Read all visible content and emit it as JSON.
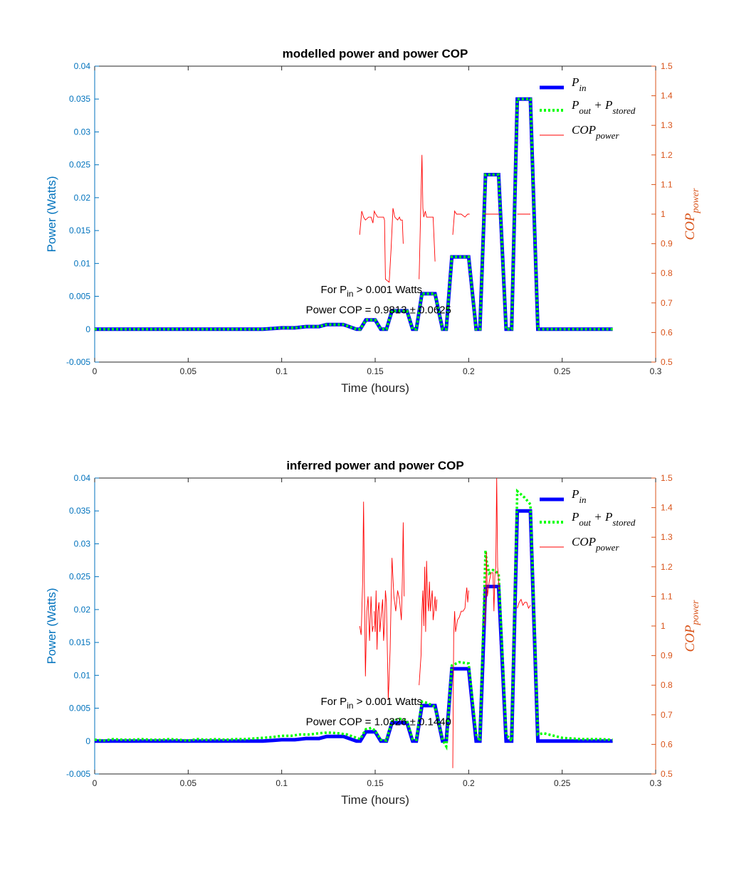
{
  "chart_data": [
    {
      "type": "line",
      "title": "modelled power and power COP",
      "xlabel": "Time (hours)",
      "ylabel_left": "Power (Watts)",
      "ylabel_right_main": "COP",
      "ylabel_right_sub": "power",
      "xlim": [
        0,
        0.3
      ],
      "ylim_left": [
        -0.005,
        0.04
      ],
      "ylim_right": [
        0.5,
        1.5
      ],
      "xticks": [
        "0",
        "0.05",
        "0.1",
        "0.15",
        "0.2",
        "0.25",
        "0.3"
      ],
      "yticks_left": [
        "-0.005",
        "0",
        "0.005",
        "0.01",
        "0.015",
        "0.02",
        "0.025",
        "0.03",
        "0.035",
        "0.04"
      ],
      "yticks_right": [
        "0.5",
        "0.6",
        "0.7",
        "0.8",
        "0.9",
        "1",
        "1.1",
        "1.2",
        "1.3",
        "1.4",
        "1.5"
      ],
      "grid": false,
      "legend_position": "top-right",
      "legend": [
        {
          "main": "P",
          "sub": "in"
        },
        {
          "main": "P",
          "sub": "out",
          "main2": " + P",
          "sub2": "stored"
        },
        {
          "main": "COP",
          "sub": "power"
        }
      ],
      "annotation": {
        "line1_pre": "For P",
        "line1_sub": "in",
        "line1_post": " > 0.001 Watts",
        "line2": "Power COP = 0.9813 ± 0.0625"
      },
      "colors": {
        "p_in": "#0000ff",
        "p_out": "#00ff00",
        "cop": "#ff0000",
        "left_axis": "#0072bd",
        "right_axis": "#d95319"
      },
      "series": [
        {
          "name": "P_in",
          "axis": "left",
          "x": [
            0,
            0.09,
            0.1,
            0.107,
            0.113,
            0.12,
            0.124,
            0.133,
            0.14,
            0.142,
            0.145,
            0.15,
            0.153,
            0.156,
            0.159,
            0.167,
            0.17,
            0.172,
            0.175,
            0.182,
            0.186,
            0.188,
            0.191,
            0.2,
            0.204,
            0.206,
            0.209,
            0.216,
            0.22,
            0.223,
            0.226,
            0.233,
            0.237,
            0.277
          ],
          "y": [
            0,
            0,
            0.0002,
            0.0002,
            0.0004,
            0.0004,
            0.0007,
            0.0007,
            0,
            0,
            0.0014,
            0.0014,
            0,
            0,
            0.0028,
            0.0028,
            0,
            0,
            0.0054,
            0.0054,
            0,
            0,
            0.011,
            0.011,
            0,
            0,
            0.0235,
            0.0235,
            0,
            0,
            0.035,
            0.035,
            0,
            0
          ]
        },
        {
          "name": "P_out + P_stored",
          "axis": "left",
          "x": [
            0,
            0.09,
            0.1,
            0.107,
            0.113,
            0.12,
            0.124,
            0.133,
            0.14,
            0.142,
            0.145,
            0.15,
            0.153,
            0.156,
            0.159,
            0.167,
            0.17,
            0.172,
            0.175,
            0.182,
            0.186,
            0.188,
            0.191,
            0.2,
            0.204,
            0.206,
            0.209,
            0.216,
            0.22,
            0.223,
            0.226,
            0.233,
            0.237,
            0.277
          ],
          "y": [
            0,
            0,
            0.0002,
            0.0002,
            0.0004,
            0.0004,
            0.0007,
            0.0007,
            0,
            0,
            0.0014,
            0.0014,
            0,
            0,
            0.0028,
            0.0028,
            0,
            0,
            0.0054,
            0.0054,
            0,
            0,
            0.011,
            0.011,
            0,
            0,
            0.0235,
            0.0235,
            0,
            0,
            0.035,
            0.035,
            0,
            0
          ]
        },
        {
          "name": "COP_power",
          "axis": "right",
          "segments": [
            {
              "x": [
                0.1417,
                0.1428,
                0.1438,
                0.1448,
                0.1465,
                0.1478,
                0.1488
              ],
              "y": [
                0.93,
                1.01,
                0.99,
                0.98,
                0.99,
                0.99,
                0.97
              ]
            },
            {
              "x": [
                0.1488,
                0.1492,
                0.1495,
                0.1503,
                0.1513,
                0.1525,
                0.1535,
                0.1545,
                0.155,
                0.1555,
                0.1575,
                0.1585,
                0.1595,
                0.1605,
                0.162,
                0.163,
                0.1635,
                0.1645,
                0.165
              ],
              "y": [
                0.97,
                0.99,
                1.01,
                1.0,
                0.99,
                0.99,
                0.99,
                0.99,
                0.98,
                0.78,
                0.77,
                0.88,
                1.02,
                0.99,
                0.98,
                0.99,
                0.98,
                0.98,
                0.9
              ]
            },
            {
              "x": [
                0.1735,
                0.175,
                0.1755,
                0.176,
                0.1768,
                0.1775,
                0.179,
                0.18,
                0.181,
                0.182
              ],
              "y": [
                0.78,
                1.2,
                1.02,
                0.99,
                1.01,
                0.99,
                0.99,
                0.99,
                0.99,
                0.84
              ]
            },
            {
              "x": [
                0.1915,
                0.1925,
                0.1935,
                0.196,
                0.198,
                0.1995,
                0.2005
              ],
              "y": [
                0.93,
                1.01,
                1.0,
                1.0,
                0.99,
                1.0,
                1.0
              ]
            },
            {
              "x": [
                0.2085,
                0.2095,
                0.2115,
                0.2135,
                0.2155,
                0.216
              ],
              "y": [
                1.0,
                1.0,
                1.0,
                1.0,
                1.0,
                1.0
              ]
            },
            {
              "x": [
                0.226,
                0.227,
                0.229,
                0.231,
                0.2325,
                0.233
              ],
              "y": [
                1.0,
                1.0,
                1.0,
                1.0,
                1.0,
                1.0
              ]
            }
          ]
        }
      ]
    },
    {
      "type": "line",
      "title": "inferred power and power COP",
      "xlabel": "Time (hours)",
      "ylabel_left": "Power (Watts)",
      "ylabel_right_main": "COP",
      "ylabel_right_sub": "power",
      "xlim": [
        0,
        0.3
      ],
      "ylim_left": [
        -0.005,
        0.04
      ],
      "ylim_right": [
        0.5,
        1.5
      ],
      "xticks": [
        "0",
        "0.05",
        "0.1",
        "0.15",
        "0.2",
        "0.25",
        "0.3"
      ],
      "yticks_left": [
        "-0.005",
        "0",
        "0.005",
        "0.01",
        "0.015",
        "0.02",
        "0.025",
        "0.03",
        "0.035",
        "0.04"
      ],
      "yticks_right": [
        "0.5",
        "0.6",
        "0.7",
        "0.8",
        "0.9",
        "1",
        "1.1",
        "1.2",
        "1.3",
        "1.4",
        "1.5"
      ],
      "grid": false,
      "legend_position": "top-right",
      "legend": [
        {
          "main": "P",
          "sub": "in"
        },
        {
          "main": "P",
          "sub": "out",
          "main2": " + P",
          "sub2": "stored"
        },
        {
          "main": "COP",
          "sub": "power"
        }
      ],
      "annotation": {
        "line1_pre": "For P",
        "line1_sub": "in",
        "line1_post": " > 0.001 Watts",
        "line2": "Power COP = 1.0326 ± 0.1440"
      },
      "colors": {
        "p_in": "#0000ff",
        "p_out": "#00ff00",
        "cop": "#ff0000",
        "left_axis": "#0072bd",
        "right_axis": "#d95319"
      },
      "series": [
        {
          "name": "P_in",
          "axis": "left",
          "x": [
            0,
            0.09,
            0.1,
            0.107,
            0.113,
            0.12,
            0.124,
            0.133,
            0.14,
            0.142,
            0.145,
            0.15,
            0.153,
            0.156,
            0.159,
            0.167,
            0.17,
            0.172,
            0.175,
            0.182,
            0.186,
            0.188,
            0.191,
            0.2,
            0.204,
            0.206,
            0.209,
            0.216,
            0.22,
            0.223,
            0.226,
            0.233,
            0.237,
            0.277
          ],
          "y": [
            0,
            0,
            0.0002,
            0.0002,
            0.0004,
            0.0004,
            0.0007,
            0.0007,
            0,
            0,
            0.0014,
            0.0014,
            0,
            0,
            0.0028,
            0.0028,
            0,
            0,
            0.0054,
            0.0054,
            0,
            0,
            0.011,
            0.011,
            0,
            0,
            0.0235,
            0.0235,
            0,
            0,
            0.035,
            0.035,
            0,
            0
          ]
        },
        {
          "name": "P_out + P_stored",
          "axis": "left",
          "x": [
            0,
            0.005,
            0.01,
            0.015,
            0.02,
            0.025,
            0.03,
            0.035,
            0.04,
            0.045,
            0.05,
            0.055,
            0.06,
            0.065,
            0.07,
            0.075,
            0.08,
            0.085,
            0.09,
            0.095,
            0.1,
            0.105,
            0.11,
            0.115,
            0.12,
            0.125,
            0.13,
            0.135,
            0.14,
            0.142,
            0.145,
            0.148,
            0.15,
            0.153,
            0.156,
            0.159,
            0.163,
            0.167,
            0.17,
            0.172,
            0.175,
            0.178,
            0.182,
            0.186,
            0.188,
            0.191,
            0.195,
            0.2,
            0.204,
            0.206,
            0.209,
            0.2095,
            0.211,
            0.213,
            0.216,
            0.22,
            0.223,
            0.226,
            0.228,
            0.23,
            0.233,
            0.237,
            0.24,
            0.25,
            0.26,
            0.27,
            0.277
          ],
          "y": [
            0.0002,
            0.0001,
            0.0003,
            0.0002,
            0.0002,
            0.0003,
            0.0002,
            0.0002,
            0.0003,
            0.0002,
            0.0001,
            0.0003,
            0.0002,
            0.0003,
            0.0002,
            0.0003,
            0.0003,
            0.0004,
            0.0005,
            0.0006,
            0.0008,
            0.0008,
            0.001,
            0.001,
            0.0012,
            0.0013,
            0.0012,
            0.001,
            0.0005,
            0.0003,
            0.0018,
            0.002,
            0.0016,
            0.0002,
            0.0001,
            0.003,
            0.0034,
            0.0031,
            0.0003,
            0.0002,
            0.006,
            0.0058,
            0.0052,
            0.0002,
            -0.0008,
            0.0115,
            0.012,
            0.0118,
            0.001,
            0,
            0.029,
            0.0275,
            0.0255,
            0.026,
            0.0255,
            0.001,
            0,
            0.038,
            0.0375,
            0.037,
            0.036,
            0.001,
            0.0012,
            0.0005,
            0.0003,
            0.0003,
            0.0002
          ]
        },
        {
          "name": "COP_power",
          "axis": "right",
          "segments": [
            {
              "x": [
                0.1417,
                0.1425,
                0.1433,
                0.1438,
                0.1443,
                0.1448,
                0.1455,
                0.1462,
                0.147,
                0.1478,
                0.1485,
                0.149
              ],
              "y": [
                1.0,
                0.97,
                1.15,
                1.42,
                1.1,
                0.83,
                1.05,
                1.1,
                0.95,
                1.1,
                0.98,
                1.0
              ]
            },
            {
              "x": [
                0.1495,
                0.15,
                0.1505,
                0.151,
                0.1515,
                0.152,
                0.1525,
                0.153,
                0.154,
                0.1545,
                0.155,
                0.1555,
                0.156,
                0.157,
                0.158,
                0.159,
                0.16,
                0.161,
                0.162,
                0.163,
                0.164,
                0.1645,
                0.165,
                0.1655
              ],
              "y": [
                1.05,
                0.98,
                1.12,
                0.92,
                1.05,
                1.08,
                0.98,
                1.02,
                1.09,
                0.95,
                1.0,
                1.12,
                1.08,
                0.75,
                0.92,
                1.23,
                1.1,
                1.05,
                1.12,
                1.09,
                1.02,
                1.15,
                1.35,
                1.1
              ]
            },
            {
              "x": [
                0.1735,
                0.1745,
                0.175,
                0.1755,
                0.176,
                0.1765,
                0.177,
                0.1775,
                0.178,
                0.1785,
                0.179,
                0.1795,
                0.18,
                0.1805,
                0.181,
                0.1815,
                0.182,
                0.1825,
                0.183
              ],
              "y": [
                0.8,
                0.9,
                1.05,
                1.12,
                1.0,
                1.2,
                0.98,
                1.22,
                1.1,
                1.05,
                1.15,
                1.05,
                1.09,
                1.12,
                1.02,
                1.05,
                1.1,
                1.05,
                1.09
              ]
            },
            {
              "x": [
                0.1915,
                0.192,
                0.1925,
                0.193,
                0.194,
                0.195,
                0.196,
                0.197,
                0.198,
                0.1985,
                0.199,
                0.1995,
                0.2
              ],
              "y": [
                0.52,
                0.97,
                1.05,
                0.98,
                1.02,
                1.03,
                1.05,
                1.05,
                1.06,
                1.1,
                1.13,
                1.08,
                1.12
              ]
            },
            {
              "x": [
                0.2085,
                0.209,
                0.2095,
                0.21,
                0.211,
                0.212,
                0.213,
                0.2135,
                0.214,
                0.2145,
                0.215,
                0.2155,
                0.216,
                0.2165
              ],
              "y": [
                1.0,
                1.05,
                1.25,
                1.1,
                1.15,
                1.18,
                1.18,
                1.05,
                1.17,
                1.2,
                1.5,
                1.2,
                1.15,
                1.12
              ]
            },
            {
              "x": [
                0.226,
                0.227,
                0.228,
                0.229,
                0.23,
                0.231,
                0.232,
                0.233
              ],
              "y": [
                1.06,
                1.08,
                1.09,
                1.07,
                1.08,
                1.08,
                1.06,
                1.07
              ]
            }
          ]
        }
      ]
    }
  ]
}
